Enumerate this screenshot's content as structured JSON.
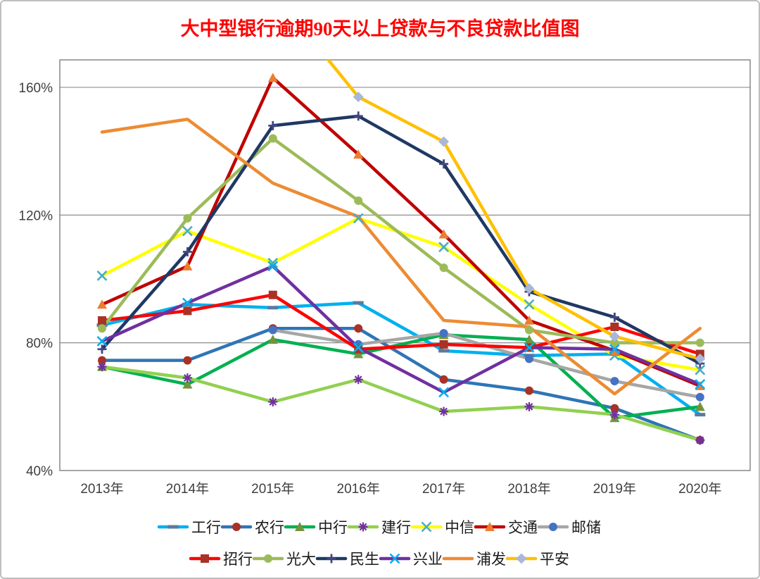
{
  "title": "大中型银行逾期90天以上贷款与不良贷款比值图",
  "title_color": "#FF0000",
  "axis": {
    "y_tick_labels": [
      "40%",
      "80%",
      "120%",
      "160%"
    ],
    "x_tick_labels": [
      "2013年",
      "2014年",
      "2015年",
      "2016年",
      "2017年",
      "2018年",
      "2019年",
      "2020年"
    ]
  },
  "chart_data": {
    "type": "line",
    "categories": [
      "2013年",
      "2014年",
      "2015年",
      "2016年",
      "2017年",
      "2018年",
      "2019年",
      "2020年"
    ],
    "yticks": [
      40,
      80,
      120,
      160
    ],
    "ylim": [
      40,
      168.5
    ],
    "grid": true,
    "legend_position": "bottom",
    "series": [
      {
        "name": "工行",
        "color": "#00B0F0",
        "marker": "dash",
        "marker_color": "#5B7B9D",
        "values": [
          85.5,
          92,
          91,
          92.5,
          77.5,
          76,
          76.5,
          57.5
        ]
      },
      {
        "name": "农行",
        "color": "#2E75B6",
        "marker": "circle",
        "marker_color": "#A93226",
        "values": [
          74.5,
          74.5,
          84.5,
          84.5,
          68.5,
          65,
          59.5,
          49.5
        ]
      },
      {
        "name": "中行",
        "color": "#00B050",
        "marker": "triangle",
        "marker_color": "#76923C",
        "values": [
          72.5,
          67,
          81,
          76.5,
          82.5,
          81,
          56.5,
          60
        ]
      },
      {
        "name": "建行",
        "color": "#92D050",
        "marker": "asterisk",
        "marker_color": "#7030A0",
        "values": [
          72.5,
          69,
          61.5,
          68.5,
          58.5,
          60,
          57.5,
          49.5
        ]
      },
      {
        "name": "中信",
        "color": "#FFFF00",
        "marker": "x",
        "marker_color": "#4BACC6",
        "values": [
          101,
          115,
          105,
          119,
          110,
          92,
          76,
          71.5
        ]
      },
      {
        "name": "交通",
        "color": "#C00000",
        "marker": "triangle",
        "marker_color": "#ED7D31",
        "values": [
          92,
          104,
          163,
          139,
          114,
          87,
          77.5,
          66.5
        ]
      },
      {
        "name": "邮储",
        "color": "#A6A6A6",
        "marker": "circle",
        "marker_color": "#4472C4",
        "values": [
          null,
          null,
          84,
          79.5,
          83,
          75,
          68,
          63
        ]
      },
      {
        "name": "招行",
        "color": "#FF0000",
        "marker": "square",
        "marker_color": "#A93226",
        "values": [
          87,
          90,
          95,
          78,
          79.5,
          78.5,
          85,
          76.5
        ]
      },
      {
        "name": "光大",
        "color": "#9BBB59",
        "marker": "circle",
        "marker_color": "#9BBB59",
        "values": [
          84.5,
          119,
          144,
          124.5,
          103.5,
          84,
          80,
          80
        ]
      },
      {
        "name": "民生",
        "color": "#1F3864",
        "marker": "plus",
        "marker_color": "#44467F",
        "values": [
          78,
          108.5,
          148,
          151,
          136,
          96,
          88,
          73.5
        ]
      },
      {
        "name": "兴业",
        "color": "#7030A0",
        "marker": "x",
        "marker_color": "#00B0F0",
        "values": [
          80.5,
          92.5,
          104,
          78.5,
          64.5,
          78.5,
          78,
          67
        ]
      },
      {
        "name": "浦发",
        "color": "#ED8B33",
        "marker": "none",
        "marker_color": "#ED8B33",
        "values": [
          146,
          150,
          130,
          119.5,
          87,
          85,
          64,
          84.5
        ]
      },
      {
        "name": "平安",
        "color": "#FFC000",
        "marker": "diamond",
        "marker_color": "#A9B8D9",
        "values": [
          null,
          null,
          190,
          157,
          143,
          97,
          82,
          75
        ]
      }
    ],
    "legend_rows": [
      [
        "工行",
        "农行",
        "中行",
        "建行",
        "中信",
        "交通",
        "邮储"
      ],
      [
        "招行",
        "光大",
        "民生",
        "兴业",
        "浦发",
        "平安"
      ]
    ]
  }
}
